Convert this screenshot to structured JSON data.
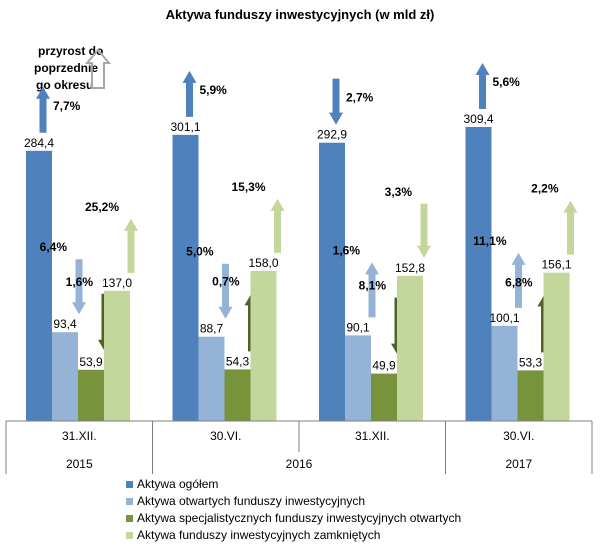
{
  "chart_data": {
    "type": "bar",
    "title": "Aktywa funduszy inwestycyjnych (w mld zł)",
    "annotation": "przyrost do poprzednie go okresu",
    "annotation_lines": [
      "przyrost do",
      "poprzednie",
      "go okresu"
    ],
    "xlabel": "",
    "ylabel": "",
    "ylim": [
      0,
      340
    ],
    "periods": [
      {
        "label": "31.XII.",
        "year": "2015"
      },
      {
        "label": "30.VI.",
        "year": "2016"
      },
      {
        "label": "31.XII.",
        "year": "2016"
      },
      {
        "label": "30.VI.",
        "year": "2017"
      }
    ],
    "year_groups": [
      {
        "label": "2015",
        "periods": 1
      },
      {
        "label": "2016",
        "periods": 2
      },
      {
        "label": "2017",
        "periods": 1
      }
    ],
    "series": [
      {
        "name": "Aktywa ogółem",
        "color": "#4F81BD",
        "arrow_color": "#4F81BD",
        "values": [
          284.4,
          301.1,
          292.9,
          309.4
        ],
        "value_labels": [
          "284,4",
          "301,1",
          "292,9",
          "309,4"
        ],
        "growth": [
          "7,7%",
          "5,9%",
          "2,7%",
          "5,6%"
        ],
        "direction": [
          "up",
          "up",
          "down",
          "up"
        ]
      },
      {
        "name": "Aktywa otwartych funduszy inwestycyjnych",
        "color": "#95B3D7",
        "arrow_color": "#95B3D7",
        "values": [
          93.4,
          88.7,
          90.1,
          100.1
        ],
        "value_labels": [
          "93,4",
          "88,7",
          "90,1",
          "100,1"
        ],
        "growth": [
          "6,4%",
          "5,0%",
          "1,6%",
          "11,1%"
        ],
        "direction": [
          "down",
          "down",
          "up",
          "up"
        ]
      },
      {
        "name": "Aktywa specjalistycznych funduszy inwestycyjnych otwartych",
        "color": "#77933C",
        "arrow_color": "#4F6228",
        "values": [
          53.9,
          54.3,
          49.9,
          53.3
        ],
        "value_labels": [
          "53,9",
          "54,3",
          "49,9",
          "53,3"
        ],
        "growth": [
          "1,6%",
          "0,7%",
          "8,1%",
          "6,8%"
        ],
        "direction": [
          "down",
          "up",
          "down",
          "up"
        ]
      },
      {
        "name": "Aktywa funduszy inwestycyjnych zamkniętych",
        "color": "#C3D69B",
        "arrow_color": "#C3D69B",
        "values": [
          137.0,
          158.0,
          152.8,
          156.1
        ],
        "value_labels": [
          "137,0",
          "158,0",
          "152,8",
          "156,1"
        ],
        "growth": [
          "25,2%",
          "15,3%",
          "3,3%",
          "2,2%"
        ],
        "direction": [
          "up",
          "up",
          "down",
          "up"
        ]
      }
    ],
    "grid": false,
    "legend_position": "bottom"
  }
}
